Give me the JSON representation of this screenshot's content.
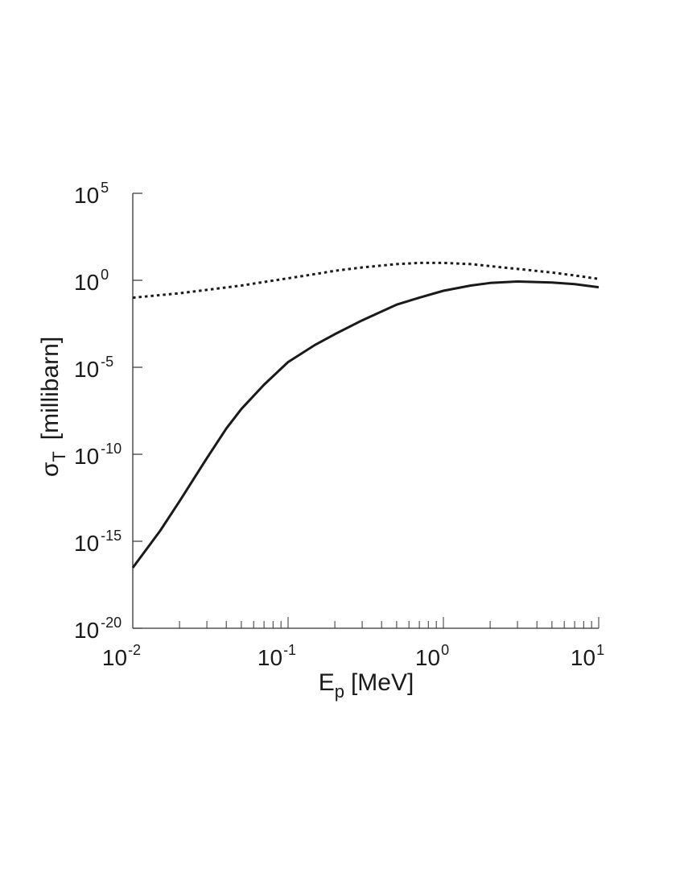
{
  "chart_data": {
    "type": "line",
    "title": "",
    "xlabel": "E",
    "xlabel_subscript": "p",
    "xlabel_unit": "[MeV]",
    "ylabel": "σ",
    "ylabel_subscript": "T",
    "ylabel_unit": "[millibarn]",
    "x_scale": "log",
    "y_scale": "log",
    "xlim": [
      0.01,
      10
    ],
    "ylim": [
      1e-20,
      100000
    ],
    "grid": false,
    "legend": "none",
    "x_ticks": [
      {
        "base": "10",
        "exp": "-2",
        "value": 0.01
      },
      {
        "base": "10",
        "exp": "-1",
        "value": 0.1
      },
      {
        "base": "10",
        "exp": "0",
        "value": 1
      },
      {
        "base": "10",
        "exp": "1",
        "value": 10
      }
    ],
    "y_ticks": [
      {
        "base": "10",
        "exp": "5",
        "value": 100000
      },
      {
        "base": "10",
        "exp": "0",
        "value": 1
      },
      {
        "base": "10",
        "exp": "-5",
        "value": 1e-05
      },
      {
        "base": "10",
        "exp": "-10",
        "value": 1e-10
      },
      {
        "base": "10",
        "exp": "-15",
        "value": 1e-15
      },
      {
        "base": "10",
        "exp": "-20",
        "value": 1e-20
      }
    ],
    "series": [
      {
        "style": "solid",
        "color": "#1a1a1a",
        "x": [
          0.01,
          0.015,
          0.02,
          0.03,
          0.04,
          0.05,
          0.07,
          0.1,
          0.15,
          0.2,
          0.3,
          0.5,
          0.7,
          1.0,
          1.5,
          2.0,
          3.0,
          5.0,
          7.0,
          10.0
        ],
        "y": [
          3e-17,
          4e-15,
          2e-13,
          6e-11,
          3e-09,
          4e-08,
          1e-06,
          2e-05,
          0.0002,
          0.0008,
          0.005,
          0.04,
          0.1,
          0.25,
          0.5,
          0.7,
          0.85,
          0.75,
          0.6,
          0.4
        ]
      },
      {
        "style": "dotted",
        "color": "#1a1a1a",
        "x": [
          0.01,
          0.02,
          0.03,
          0.05,
          0.07,
          0.1,
          0.15,
          0.2,
          0.3,
          0.5,
          0.7,
          1.0,
          1.5,
          2.0,
          3.0,
          5.0,
          7.0,
          10.0
        ],
        "y": [
          0.1,
          0.18,
          0.28,
          0.5,
          0.8,
          1.3,
          2.3,
          3.5,
          5.5,
          8.5,
          10,
          10,
          8.5,
          6.5,
          4.5,
          2.8,
          1.9,
          1.2
        ]
      }
    ]
  }
}
